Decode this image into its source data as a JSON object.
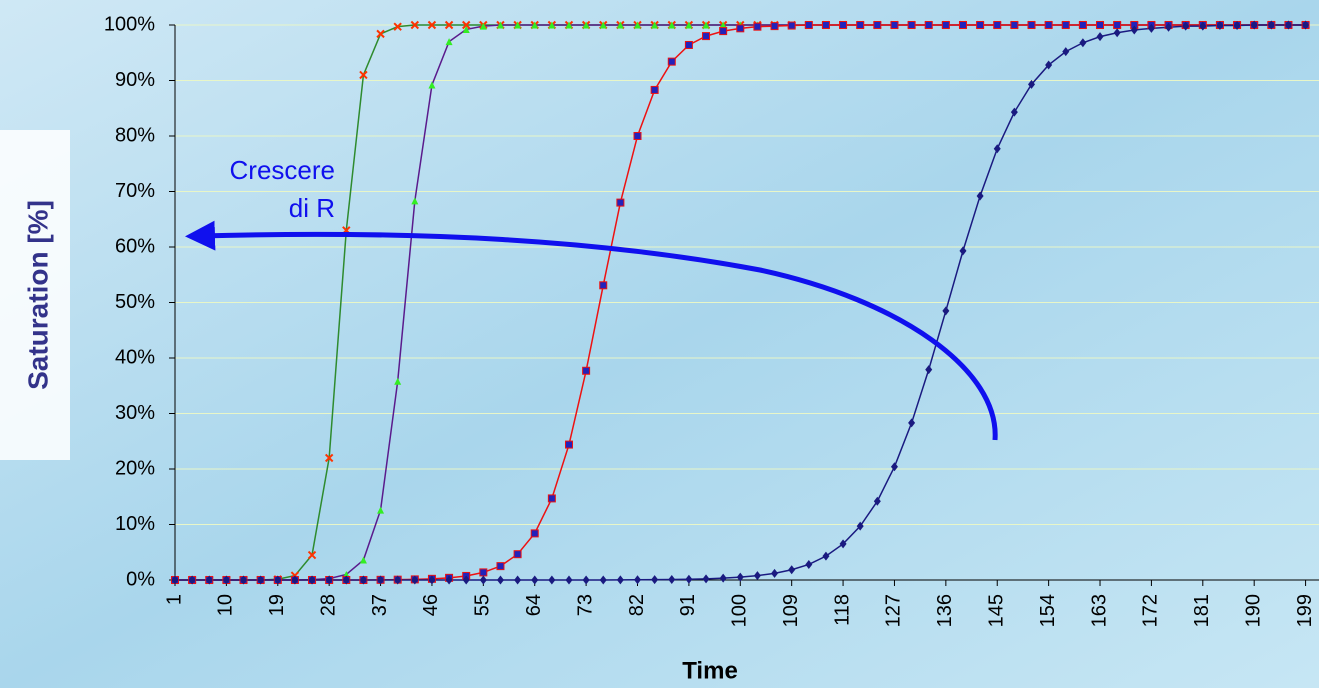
{
  "chart_data": {
    "type": "line",
    "x_label": "Time",
    "y_label": "Saturation [%]",
    "annotation": [
      "Crescere",
      "di R"
    ],
    "x": [
      1,
      4,
      7,
      10,
      13,
      16,
      19,
      22,
      25,
      28,
      31,
      34,
      37,
      40,
      43,
      46,
      49,
      52,
      55,
      58,
      61,
      64,
      67,
      70,
      73,
      76,
      79,
      82,
      85,
      88,
      91,
      94,
      97,
      100,
      103,
      106,
      109,
      112,
      115,
      118,
      121,
      124,
      127,
      130,
      133,
      136,
      139,
      142,
      145,
      148,
      151,
      154,
      157,
      160,
      163,
      166,
      169,
      172,
      175,
      178,
      181,
      184,
      187,
      190,
      193,
      196,
      199
    ],
    "xlim": [
      1,
      201
    ],
    "xticks": [
      1,
      10,
      19,
      28,
      37,
      46,
      55,
      64,
      73,
      82,
      91,
      100,
      109,
      118,
      127,
      136,
      145,
      154,
      163,
      172,
      181,
      190,
      199
    ],
    "ylim": [
      0,
      100
    ],
    "yticks": [
      {
        "value": 0,
        "label": "0%"
      },
      {
        "value": 10,
        "label": "10%"
      },
      {
        "value": 20,
        "label": "20%"
      },
      {
        "value": 30,
        "label": "30%"
      },
      {
        "value": 40,
        "label": "40%"
      },
      {
        "value": 50,
        "label": "50%"
      },
      {
        "value": 60,
        "label": "60%"
      },
      {
        "value": 70,
        "label": "70%"
      },
      {
        "value": 80,
        "label": "80%"
      },
      {
        "value": 90,
        "label": "90%"
      },
      {
        "value": 100,
        "label": "100%"
      }
    ],
    "grid": true,
    "series": [
      {
        "color": "#2e8b2e",
        "marker": "x",
        "marker_color": "#ff3300",
        "values": [
          0,
          0,
          0,
          0,
          0,
          0,
          0.13,
          0.8,
          4.5,
          22,
          63,
          91,
          98.4,
          99.7,
          100,
          100,
          100,
          100,
          100,
          100,
          100,
          100,
          100,
          100,
          100,
          100,
          100,
          100,
          100,
          100,
          100,
          100,
          100,
          100,
          100,
          100,
          100,
          100,
          100,
          100,
          100,
          100,
          100,
          100,
          100,
          100,
          100,
          100,
          100,
          100,
          100,
          100,
          100,
          100,
          100,
          100,
          100,
          100,
          100,
          100,
          100,
          100,
          100,
          100,
          100,
          100,
          100
        ]
      },
      {
        "color": "#5a1a8c",
        "marker": "triangle",
        "marker_color": "#33ee22",
        "values": [
          0,
          0,
          0,
          0,
          0,
          0,
          0,
          0,
          0.06,
          0.25,
          1,
          3.6,
          12.6,
          35.8,
          68.3,
          89.2,
          97,
          99.2,
          99.8,
          100,
          100,
          100,
          100,
          100,
          100,
          100,
          100,
          100,
          100,
          100,
          100,
          100,
          100,
          100,
          100,
          100,
          100,
          100,
          100,
          100,
          100,
          100,
          100,
          100,
          100,
          100,
          100,
          100,
          100,
          100,
          100,
          100,
          100,
          100,
          100,
          100,
          100,
          100,
          100,
          100,
          100,
          100,
          100,
          100,
          100,
          100,
          100
        ]
      },
      {
        "color": "#ee1111",
        "marker": "square",
        "marker_color": "#2222bb",
        "values": [
          0,
          0,
          0,
          0,
          0,
          0,
          0,
          0,
          0,
          0,
          0,
          0,
          0.03,
          0.06,
          0.11,
          0.21,
          0.39,
          0.73,
          1.37,
          2.5,
          4.65,
          8.4,
          14.7,
          24.4,
          37.7,
          53.1,
          68,
          80,
          88.3,
          93.4,
          96.4,
          98,
          98.9,
          99.4,
          99.7,
          99.8,
          99.9,
          100,
          100,
          100,
          100,
          100,
          100,
          100,
          100,
          100,
          100,
          100,
          100,
          100,
          100,
          100,
          100,
          100,
          100,
          100,
          100,
          100,
          100,
          100,
          100,
          100,
          100,
          100,
          100,
          100,
          100
        ]
      },
      {
        "color": "#1a1a80",
        "marker": "diamond",
        "marker_color": "#1a1a80",
        "values": [
          0,
          0,
          0,
          0,
          0,
          0,
          0,
          0,
          0,
          0,
          0,
          0,
          0,
          0,
          0,
          0,
          0,
          0,
          0,
          0,
          0,
          0,
          0,
          0,
          0,
          0,
          0.02,
          0.04,
          0.06,
          0.09,
          0.14,
          0.21,
          0.33,
          0.51,
          0.78,
          1.2,
          1.85,
          2.8,
          4.3,
          6.5,
          9.7,
          14.2,
          20.4,
          28.3,
          37.9,
          48.5,
          59.3,
          69.2,
          77.7,
          84.3,
          89.3,
          92.8,
          95.2,
          96.8,
          97.9,
          98.6,
          99.1,
          99.4,
          99.6,
          99.8,
          99.8,
          99.9,
          99.9,
          100,
          100,
          100,
          100
        ]
      }
    ]
  }
}
